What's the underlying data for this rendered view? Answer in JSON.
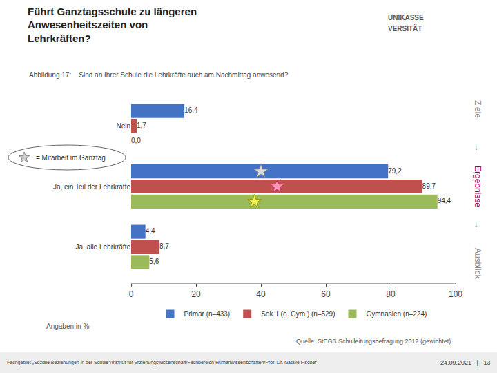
{
  "chart_data": {
    "type": "bar",
    "orientation": "horizontal",
    "title": "Führt Ganztagsschule zu längeren\nAnwesenheitszeiten von\nLehrkräften?",
    "subtitle": "Abbildung 17:    Sind an Ihrer Schule die Lehrkräfte auch am Nachmittag anwesend?",
    "categories": [
      "Nein",
      "Ja, ein Teil der Lehrkräfte",
      "Ja, alle Lehrkräfte"
    ],
    "series": [
      {
        "name": "Primar (n–433)",
        "color": "#4472C4",
        "values": [
          16.4,
          79.2,
          4.4
        ],
        "value_labels": [
          "16,4",
          "79,2",
          "4,4"
        ]
      },
      {
        "name": "Sek. I (o. Gym.) (n–529)",
        "color": "#C0504D",
        "values": [
          1.7,
          89.7,
          8.7
        ],
        "value_labels": [
          "1,7",
          "89,7",
          "8,7"
        ]
      },
      {
        "name": "Gymnasien (n–224)",
        "color": "#9BBB59",
        "values": [
          0.0,
          94.4,
          5.6
        ],
        "value_labels": [
          "0,0",
          "94,4",
          "5,6"
        ]
      }
    ],
    "xlim": [
      0,
      100
    ],
    "xticks": [
      0,
      20,
      40,
      60,
      80,
      100
    ],
    "data_labels": true,
    "grid": false,
    "legend": "bottom",
    "stars": {
      "category": "Ja, ein Teil der Lehrkräfte",
      "x": [
        40,
        45,
        38
      ],
      "colors": [
        "#DDDDDD",
        "#FF99BB",
        "#EEEE55"
      ],
      "edge_colors": [
        "#888888",
        "#CC3366",
        "#999900"
      ]
    },
    "annotation": {
      "text": "= Mitarbeit im Ganztag",
      "star_color": "#CCCCCC",
      "star_edge_color": "#888888"
    },
    "footnotes": [
      "Angaben in %",
      "Quelle: StEGS Schulleitungsbefragung 2012 (gewichtet)"
    ],
    "logo": [
      "UNIKASSE",
      "VERSITÄT"
    ],
    "side_labels": [
      "Ziele",
      "→",
      "Ergebnisse",
      "→",
      "Ausblick"
    ],
    "side_label_colors": [
      "#888888",
      "#888888",
      "#A0005A",
      "#888888",
      "#888888"
    ],
    "footer": [
      "Fachgebiet „Soziale Beziehungen in der Schule“/Institut für Erziehungswissenschaft/Fachbereich Humanwissenschaften/Prof. Dr. Natalie Fischer",
      "24.09.2021   |   13"
    ]
  }
}
